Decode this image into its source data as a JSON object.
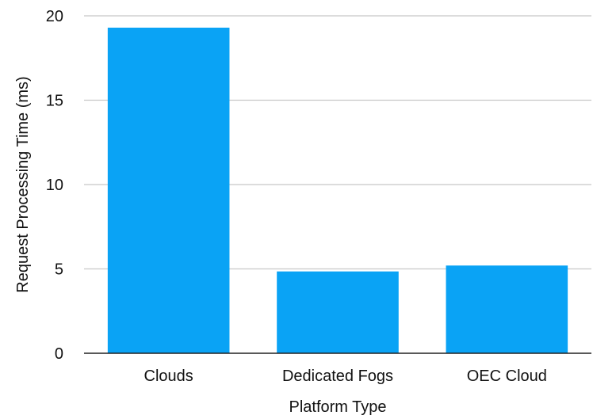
{
  "chart_data": {
    "type": "bar",
    "categories": [
      "Clouds",
      "Dedicated Fogs",
      "OEC Cloud"
    ],
    "values": [
      19.3,
      4.85,
      5.2
    ],
    "xlabel": "Platform Type",
    "ylabel": "Request Processing Time (ms)",
    "ylim": [
      0,
      20
    ],
    "yticks": [
      0,
      5,
      10,
      15,
      20
    ],
    "grid": true,
    "legend": "none",
    "bar_color": "#0aa3f5"
  }
}
